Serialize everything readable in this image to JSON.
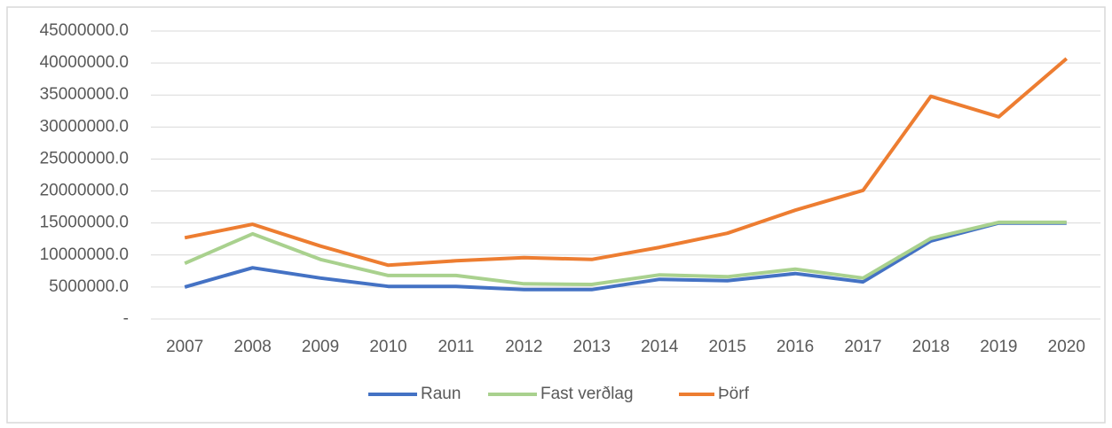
{
  "chart_data": {
    "type": "line",
    "categories": [
      "2007",
      "2008",
      "2009",
      "2010",
      "2011",
      "2012",
      "2013",
      "2014",
      "2015",
      "2016",
      "2017",
      "2018",
      "2019",
      "2020"
    ],
    "series": [
      {
        "name": "Raun",
        "color": "#4472c4",
        "values": [
          5000000,
          8000000,
          6400000,
          5100000,
          5100000,
          4600000,
          4600000,
          6200000,
          6000000,
          7100000,
          5800000,
          12200000,
          15000000,
          15000000
        ]
      },
      {
        "name": "Fast verðlag",
        "color": "#a9d18e",
        "values": [
          8700000,
          13300000,
          9300000,
          6800000,
          6800000,
          5500000,
          5400000,
          6900000,
          6600000,
          7800000,
          6400000,
          12600000,
          15100000,
          15100000
        ]
      },
      {
        "name": "Þörf",
        "color": "#ed7d31",
        "values": [
          12700000,
          14800000,
          11400000,
          8400000,
          9100000,
          9600000,
          9300000,
          11200000,
          13400000,
          17000000,
          20100000,
          34800000,
          31600000,
          40700000
        ]
      }
    ],
    "ylim": [
      0,
      45000000
    ],
    "yticks": [
      {
        "value": 0,
        "label": "-"
      },
      {
        "value": 5000000,
        "label": "5000000.0"
      },
      {
        "value": 10000000,
        "label": "10000000.0"
      },
      {
        "value": 15000000,
        "label": "15000000.0"
      },
      {
        "value": 20000000,
        "label": "20000000.0"
      },
      {
        "value": 25000000,
        "label": "25000000.0"
      },
      {
        "value": 30000000,
        "label": "30000000.0"
      },
      {
        "value": 35000000,
        "label": "35000000.0"
      },
      {
        "value": 40000000,
        "label": "40000000.0"
      },
      {
        "value": 45000000,
        "label": "45000000.0"
      }
    ],
    "grid": true,
    "legend": "bottom"
  }
}
